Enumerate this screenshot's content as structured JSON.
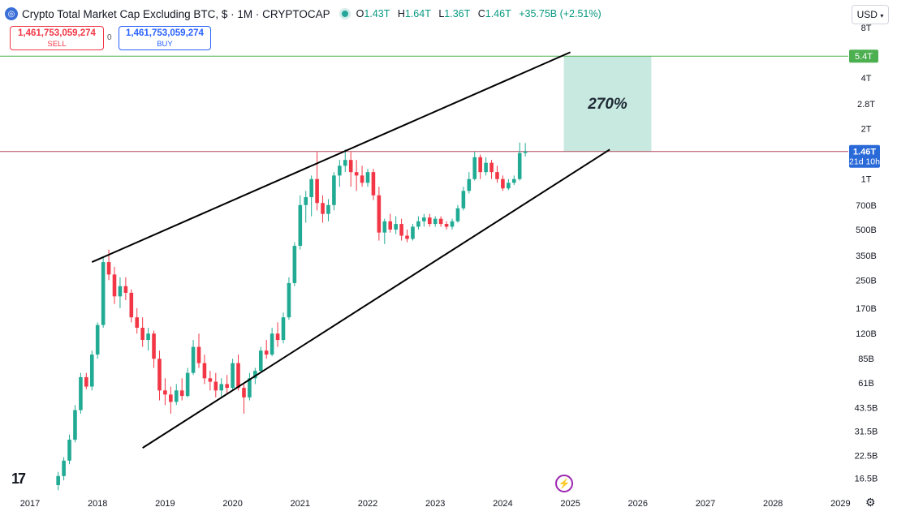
{
  "header": {
    "symbol_icon": "coin-icon",
    "title": "Crypto Total Market Cap Excluding BTC, $ · 1M · CRYPTOCAP",
    "status_icon": "live-dot",
    "open_label": "O",
    "open": "1.43T",
    "high_label": "H",
    "high": "1.64T",
    "low_label": "L",
    "low": "1.36T",
    "close_label": "C",
    "close": "1.46T",
    "change": "+35.75B (+2.51%)"
  },
  "trade": {
    "sell_price": "1,461,753,059,274",
    "sell_label": "SELL",
    "spread": "0",
    "buy_price": "1,461,753,059,274",
    "buy_label": "BUY"
  },
  "currency": "USD",
  "colors": {
    "up": "#22ab94",
    "down": "#f23645",
    "target_line": "#4caf50",
    "price_line": "#b2485b",
    "target_box": "#c8e9e0",
    "trendline": "#000000"
  },
  "chart_data": {
    "type": "candlestick",
    "scale": "log",
    "title": "Crypto Total Market Cap Excluding BTC, $ · 1M · CRYPTOCAP",
    "x_ticks": [
      "2017",
      "2018",
      "2019",
      "2020",
      "2021",
      "2022",
      "2023",
      "2024",
      "2025",
      "2026",
      "2027",
      "2028",
      "2029"
    ],
    "y_ticks": [
      "8T",
      "4T",
      "2.8T",
      "2T",
      "1T",
      "700B",
      "500B",
      "350B",
      "250B",
      "170B",
      "120B",
      "85B",
      "61B",
      "43.5B",
      "31.5B",
      "22.5B",
      "16.5B"
    ],
    "y_tick_values": [
      8000,
      4000,
      2800,
      2000,
      1000,
      700,
      500,
      350,
      250,
      170,
      120,
      85,
      61,
      43.5,
      31.5,
      22.5,
      16.5
    ],
    "current_price_label": "1.46T",
    "countdown_label": "21d 10h",
    "current_price": 1460,
    "target_label": "5.4T",
    "target_price": 5400,
    "target_annotation": "270%",
    "units": "billion USD",
    "candles_start": "2017-06",
    "candles": [
      [
        15,
        18,
        14,
        17
      ],
      [
        17,
        22,
        16,
        21
      ],
      [
        21,
        30,
        20,
        28
      ],
      [
        28,
        45,
        27,
        42
      ],
      [
        42,
        70,
        40,
        66
      ],
      [
        66,
        70,
        56,
        58
      ],
      [
        58,
        95,
        55,
        90
      ],
      [
        90,
        140,
        85,
        135
      ],
      [
        135,
        340,
        130,
        320
      ],
      [
        320,
        380,
        250,
        270
      ],
      [
        270,
        300,
        180,
        200
      ],
      [
        200,
        260,
        170,
        230
      ],
      [
        230,
        260,
        190,
        210
      ],
      [
        210,
        220,
        140,
        150
      ],
      [
        150,
        170,
        120,
        130
      ],
      [
        130,
        150,
        100,
        110
      ],
      [
        110,
        130,
        95,
        120
      ],
      [
        120,
        125,
        75,
        85
      ],
      [
        85,
        95,
        48,
        55
      ],
      [
        55,
        65,
        45,
        52
      ],
      [
        52,
        58,
        40,
        47
      ],
      [
        47,
        60,
        45,
        55
      ],
      [
        55,
        65,
        48,
        51
      ],
      [
        51,
        75,
        50,
        70
      ],
      [
        70,
        110,
        68,
        100
      ],
      [
        100,
        120,
        75,
        80
      ],
      [
        80,
        90,
        60,
        65
      ],
      [
        65,
        72,
        55,
        62
      ],
      [
        62,
        70,
        50,
        55
      ],
      [
        55,
        65,
        50,
        60
      ],
      [
        60,
        68,
        52,
        57
      ],
      [
        57,
        85,
        55,
        80
      ],
      [
        80,
        90,
        55,
        57
      ],
      [
        57,
        60,
        40,
        50
      ],
      [
        50,
        70,
        48,
        65
      ],
      [
        65,
        75,
        60,
        72
      ],
      [
        72,
        100,
        70,
        95
      ],
      [
        95,
        110,
        85,
        90
      ],
      [
        90,
        130,
        88,
        120
      ],
      [
        120,
        140,
        100,
        110
      ],
      [
        110,
        160,
        105,
        150
      ],
      [
        150,
        260,
        145,
        240
      ],
      [
        240,
        420,
        230,
        400
      ],
      [
        400,
        800,
        380,
        700
      ],
      [
        700,
        850,
        550,
        780
      ],
      [
        780,
        1050,
        600,
        1000
      ],
      [
        1000,
        1450,
        650,
        720
      ],
      [
        720,
        800,
        550,
        620
      ],
      [
        620,
        760,
        560,
        700
      ],
      [
        700,
        1100,
        650,
        1050
      ],
      [
        1050,
        1300,
        900,
        1200
      ],
      [
        1200,
        1500,
        1100,
        1300
      ],
      [
        1300,
        1450,
        900,
        1100
      ],
      [
        1100,
        1300,
        850,
        1050
      ],
      [
        1050,
        1200,
        900,
        950
      ],
      [
        950,
        1150,
        900,
        1100
      ],
      [
        1100,
        1150,
        750,
        800
      ],
      [
        800,
        900,
        430,
        480
      ],
      [
        480,
        580,
        410,
        560
      ],
      [
        560,
        620,
        480,
        500
      ],
      [
        500,
        600,
        470,
        540
      ],
      [
        540,
        580,
        430,
        460
      ],
      [
        460,
        500,
        420,
        440
      ],
      [
        440,
        540,
        430,
        520
      ],
      [
        520,
        600,
        500,
        560
      ],
      [
        560,
        620,
        520,
        590
      ],
      [
        590,
        620,
        520,
        540
      ],
      [
        540,
        600,
        520,
        580
      ],
      [
        580,
        600,
        520,
        540
      ],
      [
        540,
        560,
        500,
        520
      ],
      [
        520,
        580,
        500,
        560
      ],
      [
        560,
        700,
        550,
        670
      ],
      [
        670,
        900,
        650,
        850
      ],
      [
        850,
        1100,
        820,
        1000
      ],
      [
        1000,
        1450,
        980,
        1350
      ],
      [
        1350,
        1400,
        1000,
        1100
      ],
      [
        1100,
        1350,
        1050,
        1250
      ],
      [
        1250,
        1300,
        1000,
        1100
      ],
      [
        1100,
        1200,
        950,
        1000
      ],
      [
        1000,
        1050,
        850,
        880
      ],
      [
        880,
        1000,
        860,
        950
      ],
      [
        950,
        1050,
        920,
        1000
      ],
      [
        1000,
        1650,
        980,
        1430
      ],
      [
        1430,
        1640,
        1360,
        1460
      ]
    ],
    "trendlines": [
      {
        "name": "upper",
        "from": [
          "2017-12",
          320
        ],
        "to": [
          "2025-01",
          5700
        ]
      },
      {
        "name": "lower",
        "from": [
          "2018-09",
          25
        ],
        "to": [
          "2025-08",
          1500
        ]
      }
    ]
  }
}
